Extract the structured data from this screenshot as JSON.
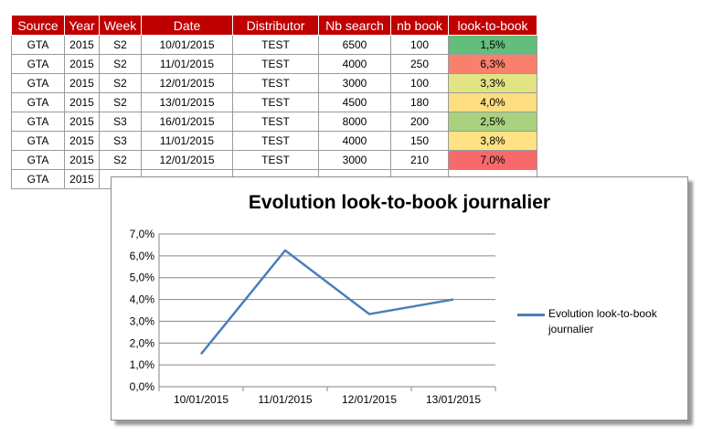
{
  "table": {
    "headers": [
      "Source",
      "Year",
      "Week",
      "Date",
      "Distributor",
      "Nb search",
      "nb book",
      "look-to-book"
    ],
    "rows": [
      {
        "source": "GTA",
        "year": "2015",
        "week": "S2",
        "date": "10/01/2015",
        "distributor": "TEST",
        "nb_search": "6500",
        "nb_book": "100",
        "ltb": "1,5%",
        "ltb_color": "#63be7b"
      },
      {
        "source": "GTA",
        "year": "2015",
        "week": "S2",
        "date": "11/01/2015",
        "distributor": "TEST",
        "nb_search": "4000",
        "nb_book": "250",
        "ltb": "6,3%",
        "ltb_color": "#f8806d"
      },
      {
        "source": "GTA",
        "year": "2015",
        "week": "S2",
        "date": "12/01/2015",
        "distributor": "TEST",
        "nb_search": "3000",
        "nb_book": "100",
        "ltb": "3,3%",
        "ltb_color": "#e2e383"
      },
      {
        "source": "GTA",
        "year": "2015",
        "week": "S2",
        "date": "13/01/2015",
        "distributor": "TEST",
        "nb_search": "4500",
        "nb_book": "180",
        "ltb": "4,0%",
        "ltb_color": "#fedd81"
      },
      {
        "source": "GTA",
        "year": "2015",
        "week": "S3",
        "date": "16/01/2015",
        "distributor": "TEST",
        "nb_search": "8000",
        "nb_book": "200",
        "ltb": "2,5%",
        "ltb_color": "#a9d27f"
      },
      {
        "source": "GTA",
        "year": "2015",
        "week": "S3",
        "date": "11/01/2015",
        "distributor": "TEST",
        "nb_search": "4000",
        "nb_book": "150",
        "ltb": "3,8%",
        "ltb_color": "#ffe283"
      },
      {
        "source": "GTA",
        "year": "2015",
        "week": "S2",
        "date": "12/01/2015",
        "distributor": "TEST",
        "nb_search": "3000",
        "nb_book": "210",
        "ltb": "7,0%",
        "ltb_color": "#f8696b"
      },
      {
        "source": "GTA",
        "year": "2015",
        "week": "",
        "date": "",
        "distributor": "",
        "nb_search": "",
        "nb_book": "",
        "ltb": "",
        "ltb_color": "#ffffff"
      }
    ],
    "header_color": "#c00000"
  },
  "chart_data": {
    "type": "line",
    "title": "Evolution look-to-book journalier",
    "categories": [
      "10/01/2015",
      "11/01/2015",
      "12/01/2015",
      "13/01/2015"
    ],
    "series": [
      {
        "name": "Evolution look-to-book journalier",
        "values": [
          1.5,
          6.25,
          3.33,
          4.0
        ],
        "color": "#4a7ebb"
      }
    ],
    "yticks": [
      "0,0%",
      "1,0%",
      "2,0%",
      "3,0%",
      "4,0%",
      "5,0%",
      "6,0%",
      "7,0%"
    ],
    "ylim": [
      0,
      7
    ],
    "grid": true,
    "legend_position": "right"
  }
}
